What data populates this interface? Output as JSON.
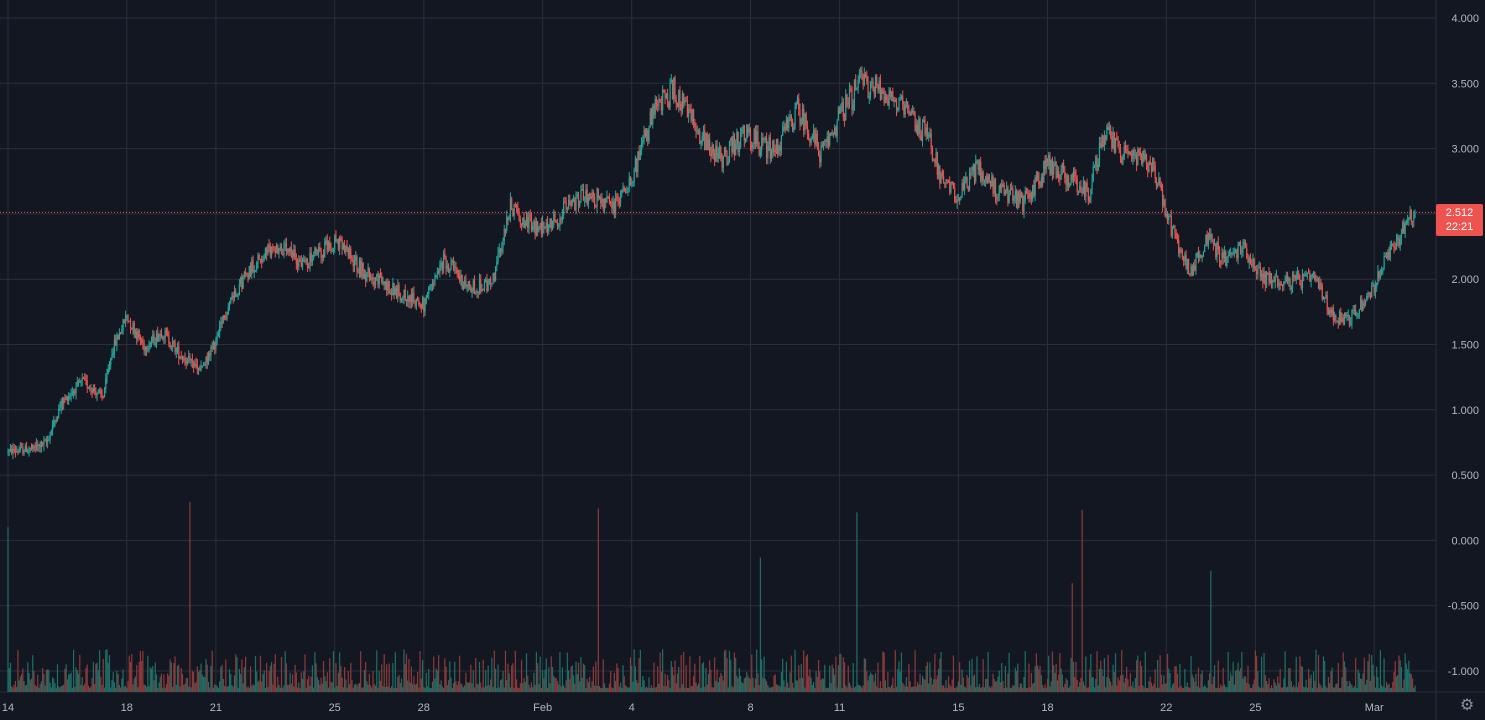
{
  "colors": {
    "background": "#131722",
    "grid": "#2a2e39",
    "up": "#26a69a",
    "down": "#ef5350",
    "up_volume": "#1f6f66",
    "down_volume": "#8c3a3a",
    "axis_text": "#b2b5be",
    "price_line": "#ef5350"
  },
  "icons": {
    "settings": "gear-icon"
  },
  "chart_data": {
    "type": "candlestick",
    "title": "",
    "ylim": [
      -1.15,
      4.1
    ],
    "y_ticks": [
      "4.000",
      "3.500",
      "3.000",
      "2.500",
      "2.000",
      "1.500",
      "1.000",
      "0.500",
      "0.000",
      "-0.500",
      "-1.000"
    ],
    "y_tick_values": [
      4.0,
      3.5,
      3.0,
      2.5,
      2.0,
      1.5,
      1.0,
      0.5,
      0.0,
      -0.5,
      -1.0
    ],
    "x_ticks": [
      "14",
      "18",
      "21",
      "25",
      "28",
      "Feb",
      "4",
      "8",
      "11",
      "15",
      "18",
      "22",
      "25",
      "Mar"
    ],
    "x_tick_days": [
      0,
      4,
      7,
      11,
      14,
      18,
      21,
      25,
      28,
      32,
      35,
      39,
      42,
      46
    ],
    "x_range_days": [
      0,
      47.5
    ],
    "candles_per_day": 24,
    "close_path": [
      [
        0,
        0.68
      ],
      [
        0.8,
        0.7
      ],
      [
        1.3,
        0.75
      ],
      [
        1.8,
        1.05
      ],
      [
        2.5,
        1.22
      ],
      [
        3.2,
        1.1
      ],
      [
        3.5,
        1.45
      ],
      [
        4.0,
        1.72
      ],
      [
        4.6,
        1.48
      ],
      [
        5.2,
        1.6
      ],
      [
        5.8,
        1.42
      ],
      [
        6.5,
        1.3
      ],
      [
        7.0,
        1.52
      ],
      [
        7.5,
        1.85
      ],
      [
        8.2,
        2.1
      ],
      [
        9.0,
        2.25
      ],
      [
        10.0,
        2.12
      ],
      [
        11.0,
        2.3
      ],
      [
        12.0,
        2.05
      ],
      [
        13.0,
        1.92
      ],
      [
        14.0,
        1.8
      ],
      [
        14.7,
        2.15
      ],
      [
        15.5,
        1.93
      ],
      [
        16.3,
        1.96
      ],
      [
        16.9,
        2.55
      ],
      [
        17.8,
        2.38
      ],
      [
        18.5,
        2.48
      ],
      [
        19.5,
        2.65
      ],
      [
        20.4,
        2.55
      ],
      [
        21.1,
        2.85
      ],
      [
        21.8,
        3.3
      ],
      [
        22.4,
        3.45
      ],
      [
        23.2,
        3.15
      ],
      [
        24.0,
        2.92
      ],
      [
        24.8,
        3.1
      ],
      [
        25.8,
        2.98
      ],
      [
        26.6,
        3.3
      ],
      [
        27.4,
        2.95
      ],
      [
        28.0,
        3.25
      ],
      [
        28.7,
        3.5
      ],
      [
        29.5,
        3.45
      ],
      [
        30.3,
        3.25
      ],
      [
        31.0,
        3.1
      ],
      [
        31.5,
        2.7
      ],
      [
        32.1,
        2.65
      ],
      [
        32.6,
        2.85
      ],
      [
        33.2,
        2.7
      ],
      [
        34.2,
        2.58
      ],
      [
        35.0,
        2.88
      ],
      [
        35.7,
        2.78
      ],
      [
        36.4,
        2.65
      ],
      [
        36.9,
        3.12
      ],
      [
        37.6,
        2.95
      ],
      [
        38.5,
        2.88
      ],
      [
        39.1,
        2.45
      ],
      [
        39.5,
        2.2
      ],
      [
        39.8,
        2.05
      ],
      [
        40.4,
        2.3
      ],
      [
        41.0,
        2.15
      ],
      [
        41.6,
        2.25
      ],
      [
        42.2,
        2.02
      ],
      [
        43.0,
        1.98
      ],
      [
        44.0,
        2.0
      ],
      [
        44.6,
        1.72
      ],
      [
        45.2,
        1.7
      ],
      [
        45.9,
        1.9
      ],
      [
        46.4,
        2.15
      ],
      [
        46.8,
        2.3
      ],
      [
        47.2,
        2.5
      ],
      [
        47.4,
        2.512
      ]
    ],
    "last_price": "2.512",
    "countdown": "22:21"
  }
}
